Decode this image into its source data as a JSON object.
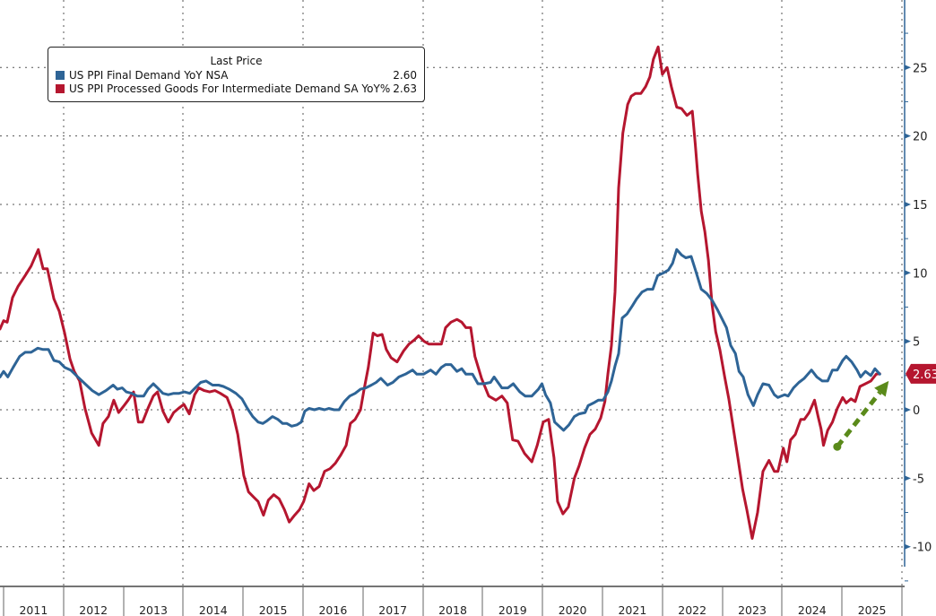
{
  "chart_data": {
    "type": "line",
    "title": "",
    "xlabel": "",
    "ylabel": "",
    "ylim": [
      -12.5,
      30
    ],
    "xlim": [
      2010.94,
      2026.0
    ],
    "y_ticks": [
      25,
      20,
      15,
      10,
      5,
      0,
      -5,
      -10
    ],
    "y_tick_labels": [
      "25",
      "20",
      "15",
      "10",
      "5",
      "0",
      "-5",
      "-10"
    ],
    "x_tick_labels": [
      "2011",
      "2012",
      "2013",
      "2014",
      "2015",
      "2016",
      "2017",
      "2018",
      "2019",
      "2020",
      "2021",
      "2022",
      "2023",
      "2024",
      "2025"
    ],
    "grid": true,
    "axis_side": "right",
    "legend": {
      "position": "top-left",
      "title": "Last Price",
      "entries": [
        {
          "label": "US PPI Final Demand YoY NSA",
          "value": "2.60",
          "color": "#2e6496"
        },
        {
          "label": "US PPI Processed Goods For Intermediate Demand SA YoY%",
          "value": "2.63",
          "color": "#b5162f"
        }
      ]
    },
    "last_value_badge": {
      "value": "2.63",
      "color": "#b5162f"
    },
    "annotation": {
      "type": "dashed-arrow",
      "color": "#5a8a1a",
      "from": [
        2024.92,
        -2.7
      ],
      "to": [
        2025.78,
        2.1
      ]
    },
    "series": [
      {
        "name": "US PPI Final Demand YoY NSA",
        "color": "#2e6496",
        "x": [
          2010.94,
          2011.0,
          2011.07,
          2011.16,
          2011.27,
          2011.36,
          2011.46,
          2011.57,
          2011.66,
          2011.75,
          2011.84,
          2011.93,
          2012.02,
          2012.12,
          2012.24,
          2012.36,
          2012.48,
          2012.59,
          2012.71,
          2012.83,
          2012.9,
          2012.98,
          2013.05,
          2013.14,
          2013.23,
          2013.34,
          2013.41,
          2013.5,
          2013.57,
          2013.66,
          2013.75,
          2013.84,
          2013.93,
          2014.02,
          2014.11,
          2014.2,
          2014.29,
          2014.38,
          2014.49,
          2014.59,
          2014.67,
          2014.77,
          2014.88,
          2014.98,
          2015.07,
          2015.16,
          2015.25,
          2015.33,
          2015.4,
          2015.49,
          2015.58,
          2015.66,
          2015.73,
          2015.81,
          2015.9,
          2015.97,
          2016.03,
          2016.1,
          2016.19,
          2016.27,
          2016.36,
          2016.43,
          2016.52,
          2016.6,
          2016.69,
          2016.78,
          2016.87,
          2016.96,
          2017.05,
          2017.14,
          2017.22,
          2017.3,
          2017.41,
          2017.5,
          2017.6,
          2017.71,
          2017.83,
          2017.9,
          2018.01,
          2018.13,
          2018.22,
          2018.31,
          2018.38,
          2018.47,
          2018.57,
          2018.65,
          2018.72,
          2018.83,
          2018.92,
          2019.02,
          2019.13,
          2019.19,
          2019.32,
          2019.42,
          2019.51,
          2019.62,
          2019.71,
          2019.82,
          2019.93,
          2019.99,
          2020.05,
          2020.13,
          2020.2,
          2020.35,
          2020.44,
          2020.53,
          2020.61,
          2020.71,
          2020.76,
          2020.85,
          2020.93,
          2021.01,
          2021.09,
          2021.15,
          2021.21,
          2021.27,
          2021.33,
          2021.41,
          2021.5,
          2021.57,
          2021.66,
          2021.75,
          2021.84,
          2021.92,
          2022.02,
          2022.1,
          2022.17,
          2022.24,
          2022.32,
          2022.39,
          2022.48,
          2022.56,
          2022.65,
          2022.74,
          2022.83,
          2022.92,
          2022.99,
          2023.07,
          2023.14,
          2023.22,
          2023.28,
          2023.35,
          2023.43,
          2023.52,
          2023.59,
          2023.68,
          2023.78,
          2023.87,
          2023.93,
          2024.04,
          2024.1,
          2024.19,
          2024.28,
          2024.37,
          2024.49,
          2024.58,
          2024.67,
          2024.76,
          2024.84,
          2024.92,
          2025.01,
          2025.07,
          2025.16,
          2025.25,
          2025.31,
          2025.39,
          2025.48,
          2025.55,
          2025.63
        ],
        "y": [
          2.4,
          2.8,
          2.4,
          3.1,
          3.9,
          4.2,
          4.2,
          4.5,
          4.4,
          4.4,
          3.6,
          3.5,
          3.1,
          2.9,
          2.4,
          1.9,
          1.4,
          1.1,
          1.4,
          1.8,
          1.5,
          1.6,
          1.3,
          1.2,
          1.0,
          1.0,
          1.5,
          1.9,
          1.6,
          1.2,
          1.1,
          1.2,
          1.2,
          1.3,
          1.2,
          1.6,
          2.0,
          2.1,
          1.8,
          1.8,
          1.7,
          1.5,
          1.2,
          0.8,
          0.1,
          -0.5,
          -0.9,
          -1.0,
          -0.8,
          -0.5,
          -0.7,
          -1.0,
          -1.0,
          -1.2,
          -1.1,
          -0.9,
          -0.1,
          0.1,
          0.0,
          0.1,
          0.0,
          0.1,
          0.0,
          0.0,
          0.6,
          1.0,
          1.2,
          1.5,
          1.6,
          1.8,
          2.0,
          2.3,
          1.8,
          2.0,
          2.4,
          2.6,
          2.9,
          2.6,
          2.6,
          2.9,
          2.6,
          3.1,
          3.3,
          3.3,
          2.8,
          3.0,
          2.6,
          2.6,
          1.9,
          1.9,
          2.0,
          2.4,
          1.6,
          1.6,
          1.9,
          1.3,
          1.0,
          1.0,
          1.5,
          1.9,
          1.1,
          0.5,
          -0.9,
          -1.5,
          -1.1,
          -0.5,
          -0.3,
          -0.2,
          0.3,
          0.5,
          0.7,
          0.7,
          1.3,
          2.1,
          3.2,
          4.1,
          6.7,
          7.0,
          7.6,
          8.1,
          8.6,
          8.8,
          8.8,
          9.8,
          10.0,
          10.2,
          10.7,
          11.7,
          11.3,
          11.1,
          11.2,
          10.1,
          8.8,
          8.5,
          8.0,
          7.3,
          6.7,
          6.0,
          4.7,
          4.1,
          2.8,
          2.4,
          1.1,
          0.3,
          1.1,
          1.9,
          1.8,
          1.1,
          0.9,
          1.1,
          1.0,
          1.6,
          2.0,
          2.3,
          2.9,
          2.4,
          2.1,
          2.1,
          2.9,
          2.9,
          3.6,
          3.9,
          3.5,
          2.9,
          2.4,
          2.8,
          2.5,
          3.0,
          2.6
        ]
      },
      {
        "name": "US PPI Processed Goods For Intermediate Demand SA YoY%",
        "color": "#b5162f",
        "x": [
          2010.94,
          2011.0,
          2011.06,
          2011.15,
          2011.24,
          2011.36,
          2011.46,
          2011.58,
          2011.66,
          2011.73,
          2011.84,
          2011.93,
          2012.02,
          2012.11,
          2012.18,
          2012.27,
          2012.36,
          2012.47,
          2012.59,
          2012.66,
          2012.75,
          2012.84,
          2012.92,
          2013.01,
          2013.08,
          2013.17,
          2013.25,
          2013.32,
          2013.41,
          2013.5,
          2013.57,
          2013.66,
          2013.75,
          2013.84,
          2013.92,
          2014.01,
          2014.1,
          2014.19,
          2014.26,
          2014.35,
          2014.44,
          2014.53,
          2014.62,
          2014.73,
          2014.82,
          2014.91,
          2015.01,
          2015.09,
          2015.18,
          2015.25,
          2015.34,
          2015.42,
          2015.51,
          2015.6,
          2015.69,
          2015.77,
          2015.86,
          2015.94,
          2016.01,
          2016.1,
          2016.18,
          2016.27,
          2016.36,
          2016.45,
          2016.54,
          2016.63,
          2016.72,
          2016.79,
          2016.87,
          2016.96,
          2017.02,
          2017.09,
          2017.17,
          2017.24,
          2017.32,
          2017.39,
          2017.47,
          2017.57,
          2017.68,
          2017.77,
          2017.86,
          2017.93,
          2018.02,
          2018.1,
          2018.2,
          2018.31,
          2018.38,
          2018.47,
          2018.57,
          2018.65,
          2018.72,
          2018.8,
          2018.87,
          2018.98,
          2019.1,
          2019.22,
          2019.32,
          2019.41,
          2019.5,
          2019.59,
          2019.7,
          2019.82,
          2019.91,
          2020.01,
          2020.1,
          2020.19,
          2020.25,
          2020.34,
          2020.43,
          2020.53,
          2020.61,
          2020.7,
          2020.79,
          2020.88,
          2020.97,
          2021.04,
          2021.09,
          2021.15,
          2021.21,
          2021.27,
          2021.34,
          2021.42,
          2021.48,
          2021.55,
          2021.64,
          2021.72,
          2021.79,
          2021.85,
          2021.93,
          2022.0,
          2022.08,
          2022.15,
          2022.24,
          2022.32,
          2022.41,
          2022.5,
          2022.55,
          2022.59,
          2022.65,
          2022.71,
          2022.77,
          2022.83,
          2022.89,
          2022.96,
          2023.04,
          2023.11,
          2023.19,
          2023.26,
          2023.34,
          2023.41,
          2023.5,
          2023.59,
          2023.68,
          2023.78,
          2023.87,
          2023.93,
          2024.02,
          2024.08,
          2024.14,
          2024.22,
          2024.31,
          2024.37,
          2024.45,
          2024.54,
          2024.6,
          2024.65,
          2024.69,
          2024.76,
          2024.84,
          2024.92,
          2025.01,
          2025.07,
          2025.15,
          2025.22,
          2025.3,
          2025.39,
          2025.48,
          2025.57,
          2025.63
        ],
        "y": [
          5.9,
          6.5,
          6.4,
          8.2,
          9.0,
          9.8,
          10.5,
          11.7,
          10.3,
          10.3,
          8.1,
          7.2,
          5.6,
          3.7,
          2.8,
          2.1,
          0.1,
          -1.7,
          -2.6,
          -1.0,
          -0.5,
          0.7,
          -0.2,
          0.3,
          0.7,
          1.3,
          -0.9,
          -0.9,
          0.1,
          1.0,
          1.3,
          -0.1,
          -0.9,
          -0.2,
          0.1,
          0.4,
          -0.3,
          1.1,
          1.6,
          1.4,
          1.3,
          1.4,
          1.2,
          0.9,
          -0.1,
          -1.8,
          -4.8,
          -6.0,
          -6.4,
          -6.7,
          -7.7,
          -6.6,
          -6.2,
          -6.5,
          -7.3,
          -8.2,
          -7.7,
          -7.3,
          -6.7,
          -5.4,
          -5.9,
          -5.6,
          -4.5,
          -4.3,
          -3.9,
          -3.3,
          -2.6,
          -1.0,
          -0.7,
          0.0,
          1.5,
          3.1,
          5.6,
          5.4,
          5.5,
          4.4,
          3.8,
          3.5,
          4.3,
          4.8,
          5.1,
          5.4,
          5.0,
          4.8,
          4.8,
          4.8,
          6.0,
          6.4,
          6.6,
          6.4,
          6.0,
          6.0,
          3.9,
          2.3,
          1.0,
          0.7,
          1.0,
          0.5,
          -2.2,
          -2.3,
          -3.2,
          -3.8,
          -2.6,
          -0.9,
          -0.7,
          -3.5,
          -6.7,
          -7.6,
          -7.1,
          -5.0,
          -4.1,
          -2.8,
          -1.8,
          -1.4,
          -0.6,
          0.6,
          2.6,
          4.7,
          8.6,
          16.2,
          20.2,
          22.3,
          22.9,
          23.1,
          23.1,
          23.6,
          24.3,
          25.6,
          26.5,
          24.5,
          25.0,
          23.6,
          22.1,
          22.0,
          21.5,
          21.8,
          19.4,
          17.2,
          14.5,
          13.0,
          10.9,
          7.7,
          5.7,
          4.4,
          2.4,
          0.8,
          -1.5,
          -3.5,
          -5.8,
          -7.3,
          -9.4,
          -7.5,
          -4.5,
          -3.7,
          -4.5,
          -4.5,
          -2.8,
          -3.8,
          -2.2,
          -1.8,
          -0.7,
          -0.7,
          -0.2,
          0.7,
          -0.5,
          -1.4,
          -2.6,
          -1.5,
          -0.9,
          0.1,
          0.9,
          0.5,
          0.8,
          0.6,
          1.7,
          1.9,
          2.1,
          2.6,
          2.63
        ]
      }
    ]
  }
}
